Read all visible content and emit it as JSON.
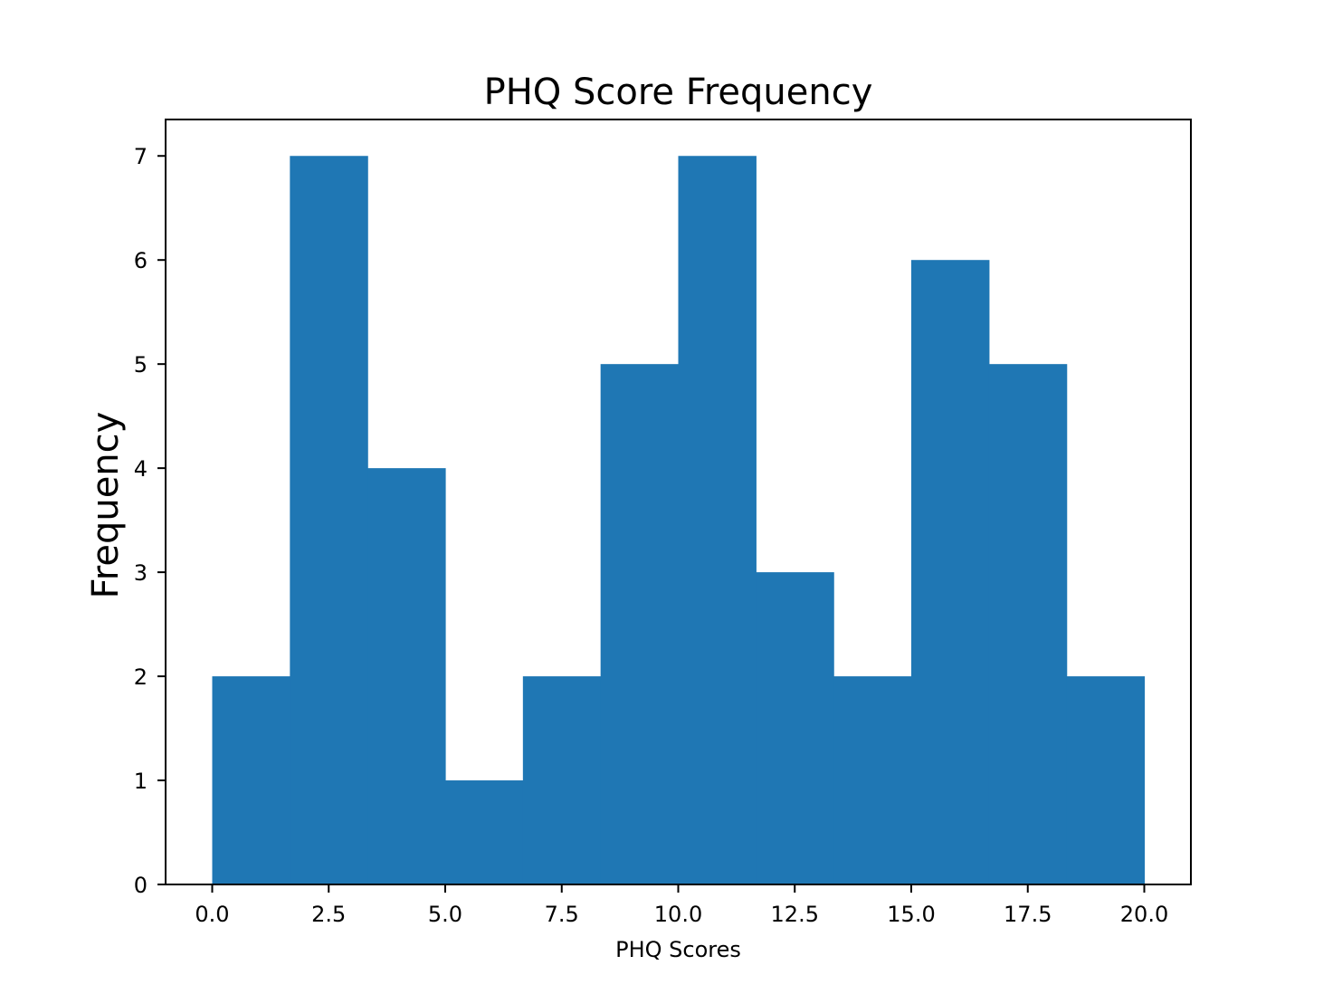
{
  "chart_data": {
    "type": "bar",
    "title": "PHQ Score Frequency",
    "xlabel": "PHQ Scores",
    "ylabel": "Frequency",
    "xlim": [
      -1.0,
      21.0
    ],
    "ylim": [
      0,
      7.35
    ],
    "bin_edges": [
      0.0,
      1.6667,
      3.3333,
      5.0,
      6.6667,
      8.3333,
      10.0,
      11.6667,
      13.3333,
      15.0,
      16.6667,
      18.3333,
      20.0
    ],
    "values": [
      2,
      7,
      4,
      1,
      2,
      5,
      7,
      3,
      2,
      6,
      5,
      2
    ],
    "x_ticks": [
      0.0,
      2.5,
      5.0,
      7.5,
      10.0,
      12.5,
      15.0,
      17.5,
      20.0
    ],
    "x_tick_labels": [
      "0.0",
      "2.5",
      "5.0",
      "7.5",
      "10.0",
      "12.5",
      "15.0",
      "17.5",
      "20.0"
    ],
    "y_ticks": [
      0,
      1,
      2,
      3,
      4,
      5,
      6,
      7
    ],
    "y_tick_labels": [
      "0",
      "1",
      "2",
      "3",
      "4",
      "5",
      "6",
      "7"
    ],
    "grid": false,
    "legend": "none",
    "bar_color": "#1f77b4"
  }
}
